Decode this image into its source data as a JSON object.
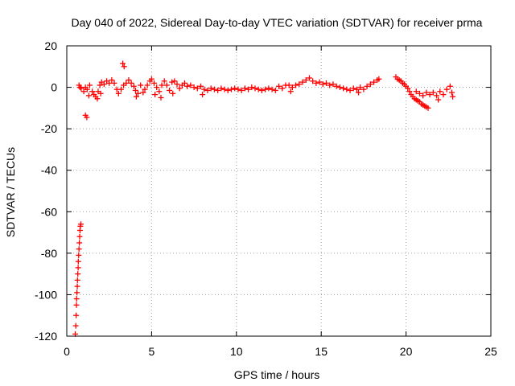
{
  "chart_data": {
    "type": "scatter",
    "title": "Day 040 of 2022, Sidereal Day-to-day VTEC variation (SDTVAR) for receiver prma",
    "xlabel": "GPS time / hours",
    "ylabel": "SDTVAR / TECUs",
    "xlim": [
      0,
      25
    ],
    "ylim": [
      -120,
      20
    ],
    "xticks": [
      0,
      5,
      10,
      15,
      20,
      25
    ],
    "yticks": [
      -120,
      -100,
      -80,
      -60,
      -40,
      -20,
      0,
      20
    ],
    "grid": true,
    "marker": "+",
    "marker_color": "#ff0000",
    "series": [
      {
        "name": "SDTVAR",
        "points": [
          [
            0.5,
            -119
          ],
          [
            0.53,
            -115
          ],
          [
            0.55,
            -110
          ],
          [
            0.57,
            -105
          ],
          [
            0.58,
            -102
          ],
          [
            0.6,
            -99
          ],
          [
            0.62,
            -96
          ],
          [
            0.63,
            -93
          ],
          [
            0.65,
            -90
          ],
          [
            0.67,
            -87
          ],
          [
            0.68,
            -84
          ],
          [
            0.7,
            -81
          ],
          [
            0.72,
            -78
          ],
          [
            0.74,
            -75
          ],
          [
            0.76,
            -72
          ],
          [
            0.78,
            -69
          ],
          [
            0.8,
            -67
          ],
          [
            0.83,
            -66
          ],
          [
            0.72,
            1.0
          ],
          [
            0.78,
            0.0
          ],
          [
            0.85,
            -0.5
          ],
          [
            1.1,
            -13.5
          ],
          [
            1.18,
            -14.5
          ],
          [
            1.0,
            -2.0
          ],
          [
            1.1,
            0.0
          ],
          [
            1.2,
            -1.0
          ],
          [
            1.35,
            1.0
          ],
          [
            1.5,
            -2.0
          ],
          [
            1.6,
            -3.5
          ],
          [
            1.7,
            -4.5
          ],
          [
            1.85,
            -2.0
          ],
          [
            1.95,
            1.0
          ],
          [
            2.05,
            2.5
          ],
          [
            2.2,
            1.5
          ],
          [
            2.35,
            3.0
          ],
          [
            2.5,
            2.0
          ],
          [
            2.65,
            3.5
          ],
          [
            2.8,
            2.0
          ],
          [
            2.95,
            -1.0
          ],
          [
            3.05,
            -3.0
          ],
          [
            3.2,
            -1.0
          ],
          [
            3.35,
            1.0
          ],
          [
            3.5,
            2.0
          ],
          [
            3.65,
            3.5
          ],
          [
            3.8,
            2.0
          ],
          [
            3.95,
            0.5
          ],
          [
            4.05,
            -1.5
          ],
          [
            4.2,
            -3.0
          ],
          [
            4.35,
            1.0
          ],
          [
            4.5,
            -2.5
          ],
          [
            4.6,
            -1.0
          ],
          [
            4.75,
            1.0
          ],
          [
            4.9,
            3.0
          ],
          [
            5.0,
            4.0
          ],
          [
            5.15,
            2.0
          ],
          [
            5.3,
            0.0
          ],
          [
            5.45,
            -2.0
          ],
          [
            5.6,
            1.0
          ],
          [
            5.75,
            3.0
          ],
          [
            5.9,
            1.0
          ],
          [
            6.05,
            -1.5
          ],
          [
            6.2,
            2.5
          ],
          [
            6.35,
            3.0
          ],
          [
            6.5,
            1.5
          ],
          [
            6.65,
            -0.5
          ],
          [
            6.8,
            1.0
          ],
          [
            6.95,
            2.0
          ],
          [
            7.1,
            0.5
          ],
          [
            7.3,
            1.0
          ],
          [
            7.5,
            0.0
          ],
          [
            7.7,
            -0.5
          ],
          [
            7.9,
            0.5
          ],
          [
            8.1,
            -1.0
          ],
          [
            8.3,
            -1.5
          ],
          [
            8.5,
            -0.5
          ],
          [
            8.7,
            -1.0
          ],
          [
            8.9,
            -1.5
          ],
          [
            9.1,
            -0.5
          ],
          [
            9.3,
            -1.0
          ],
          [
            9.5,
            -1.5
          ],
          [
            9.7,
            -1.0
          ],
          [
            9.9,
            -0.5
          ],
          [
            10.1,
            -1.0
          ],
          [
            10.3,
            -1.5
          ],
          [
            10.5,
            -0.5
          ],
          [
            10.7,
            -1.0
          ],
          [
            10.9,
            0.0
          ],
          [
            11.1,
            -0.5
          ],
          [
            11.3,
            -1.0
          ],
          [
            11.5,
            -1.5
          ],
          [
            11.7,
            -1.0
          ],
          [
            11.9,
            -0.5
          ],
          [
            12.1,
            -1.0
          ],
          [
            12.3,
            -1.5
          ],
          [
            12.5,
            0.5
          ],
          [
            12.7,
            -0.5
          ],
          [
            12.9,
            1.0
          ],
          [
            13.1,
            1.0
          ],
          [
            13.3,
            0.0
          ],
          [
            13.5,
            1.0
          ],
          [
            13.7,
            1.5
          ],
          [
            13.9,
            2.5
          ],
          [
            14.1,
            3.5
          ],
          [
            14.3,
            4.5
          ],
          [
            14.5,
            3.0
          ],
          [
            14.7,
            2.0
          ],
          [
            14.9,
            2.5
          ],
          [
            15.1,
            1.5
          ],
          [
            15.3,
            2.0
          ],
          [
            15.5,
            1.0
          ],
          [
            15.7,
            1.5
          ],
          [
            15.9,
            0.5
          ],
          [
            16.1,
            0.0
          ],
          [
            16.3,
            -0.5
          ],
          [
            16.5,
            -1.0
          ],
          [
            16.7,
            -1.5
          ],
          [
            16.9,
            -0.5
          ],
          [
            17.1,
            -1.0
          ],
          [
            17.3,
            0.0
          ],
          [
            17.5,
            -1.0
          ],
          [
            17.7,
            0.5
          ],
          [
            17.9,
            1.5
          ],
          [
            18.1,
            2.5
          ],
          [
            18.3,
            3.5
          ],
          [
            18.4,
            4.0
          ],
          [
            3.3,
            11.5
          ],
          [
            3.38,
            10.0
          ],
          [
            19.4,
            5.0
          ],
          [
            19.5,
            4.0
          ],
          [
            19.6,
            3.5
          ],
          [
            19.7,
            3.0
          ],
          [
            19.8,
            2.0
          ],
          [
            19.9,
            1.5
          ],
          [
            20.0,
            0.5
          ],
          [
            20.1,
            -0.5
          ],
          [
            20.2,
            -2.0
          ],
          [
            20.3,
            -3.5
          ],
          [
            20.4,
            -4.5
          ],
          [
            20.5,
            -5.5
          ],
          [
            20.6,
            -6.0
          ],
          [
            20.7,
            -6.5
          ],
          [
            20.8,
            -7.0
          ],
          [
            20.9,
            -8.0
          ],
          [
            21.0,
            -8.5
          ],
          [
            21.1,
            -9.0
          ],
          [
            21.2,
            -9.5
          ],
          [
            21.3,
            -10.0
          ],
          [
            20.6,
            -2.0
          ],
          [
            20.8,
            -3.0
          ],
          [
            21.0,
            -4.0
          ],
          [
            21.2,
            -2.5
          ],
          [
            21.4,
            -3.5
          ],
          [
            21.6,
            -2.5
          ],
          [
            21.8,
            -4.0
          ],
          [
            22.0,
            -2.0
          ],
          [
            22.2,
            -3.5
          ],
          [
            22.4,
            -1.0
          ],
          [
            22.6,
            0.5
          ],
          [
            22.7,
            -2.5
          ],
          [
            22.75,
            -4.5
          ],
          [
            1.3,
            -4.0
          ],
          [
            1.8,
            -5.5
          ],
          [
            2.0,
            -3.0
          ],
          [
            4.1,
            -4.5
          ],
          [
            5.2,
            -3.5
          ],
          [
            5.55,
            -5.0
          ],
          [
            6.25,
            -3.0
          ],
          [
            8.0,
            -3.5
          ],
          [
            13.2,
            -2.0
          ],
          [
            17.2,
            -2.5
          ],
          [
            21.9,
            -6.0
          ]
        ]
      }
    ]
  }
}
